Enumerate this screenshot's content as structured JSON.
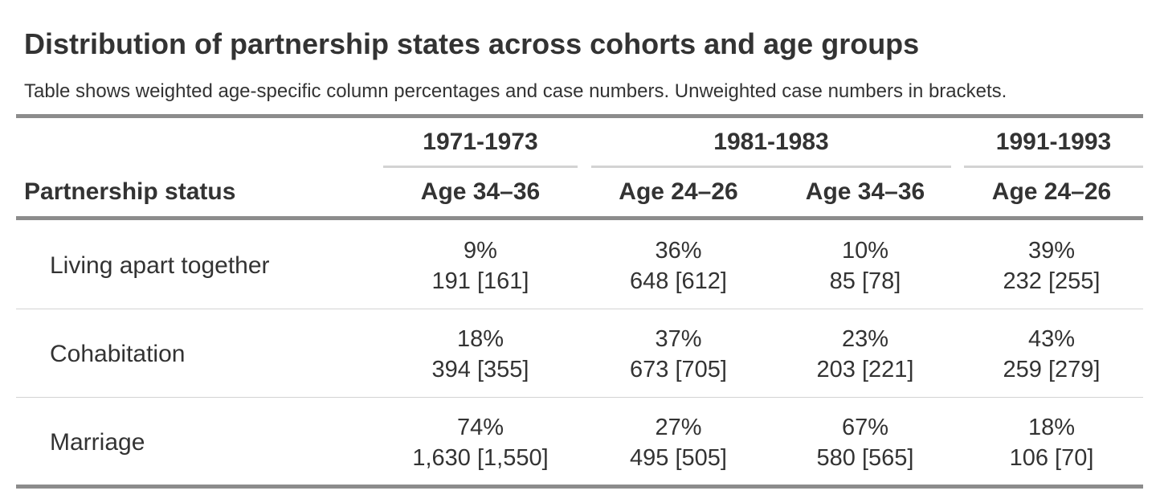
{
  "title": "Distribution of partnership states across cohorts and age groups",
  "subtitle": "Table shows weighted age-specific column percentages and case numbers. Unweighted case numbers in brackets.",
  "stub_header": "Partnership status",
  "spanners": [
    "1971-1973",
    "1981-1983",
    "1991-1993"
  ],
  "columns": [
    "Age 34–36",
    "Age 24–26",
    "Age 34–36",
    "Age 24–26"
  ],
  "rows": [
    {
      "label": "Living apart together",
      "cells": [
        {
          "pct": "9%",
          "n": "191 [161]"
        },
        {
          "pct": "36%",
          "n": "648 [612]"
        },
        {
          "pct": "10%",
          "n": "85 [78]"
        },
        {
          "pct": "39%",
          "n": "232 [255]"
        }
      ]
    },
    {
      "label": "Cohabitation",
      "cells": [
        {
          "pct": "18%",
          "n": "394 [355]"
        },
        {
          "pct": "37%",
          "n": "673 [705]"
        },
        {
          "pct": "23%",
          "n": "203 [221]"
        },
        {
          "pct": "43%",
          "n": "259 [279]"
        }
      ]
    },
    {
      "label": "Marriage",
      "cells": [
        {
          "pct": "74%",
          "n": "1,630 [1,550]"
        },
        {
          "pct": "27%",
          "n": "495 [505]"
        },
        {
          "pct": "67%",
          "n": "580 [565]"
        },
        {
          "pct": "18%",
          "n": "106 [70]"
        }
      ]
    }
  ]
}
